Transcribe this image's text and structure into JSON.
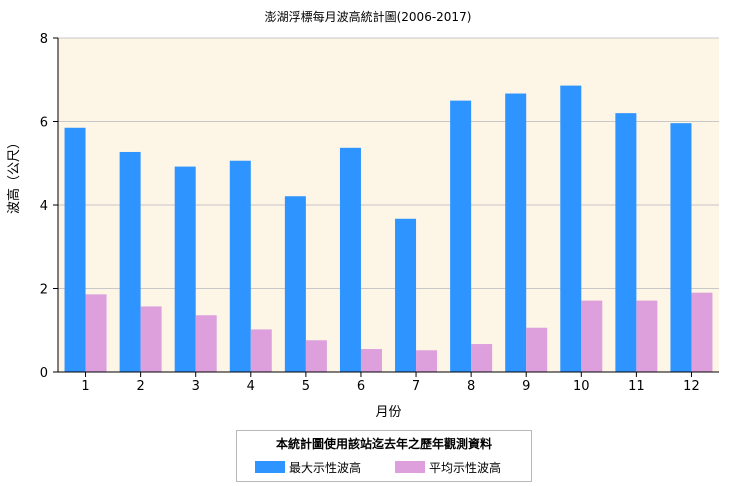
{
  "chart_data": {
    "type": "bar",
    "title": "澎湖浮標每月波高統計圖(2006-2017)",
    "xlabel": "月份",
    "ylabel": "波高（公尺）",
    "categories": [
      "1",
      "2",
      "3",
      "4",
      "5",
      "6",
      "7",
      "8",
      "9",
      "10",
      "11",
      "12"
    ],
    "ylim": [
      0,
      8
    ],
    "yticks": [
      "0",
      "2",
      "4",
      "6",
      "8"
    ],
    "grid": true,
    "legend_placement": "bottom",
    "legend_title": "本統計圖使用該站迄去年之歷年觀測資料",
    "series": [
      {
        "name": "最大示性波高",
        "color": "#2e94ff",
        "values": [
          5.85,
          5.27,
          4.92,
          5.06,
          4.21,
          5.37,
          3.67,
          6.5,
          6.67,
          6.86,
          6.2,
          5.96
        ]
      },
      {
        "name": "平均示性波高",
        "color": "#dda0dd",
        "values": [
          1.86,
          1.57,
          1.36,
          1.02,
          0.76,
          0.55,
          0.52,
          0.67,
          1.06,
          1.71,
          1.71,
          1.9
        ]
      }
    ],
    "plot_background": "#fdf5e6"
  }
}
